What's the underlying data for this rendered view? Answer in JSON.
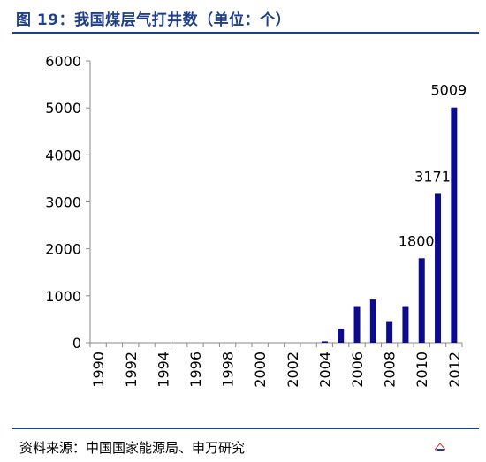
{
  "header": {
    "title": "图 19：我国煤层气打井数（单位：个）"
  },
  "footer": {
    "source": "资料来源：中国国家能源局、申万研究"
  },
  "colors": {
    "bar": "#0b0b8c",
    "title": "#1f3f8a",
    "rule": "#1f3f8a"
  },
  "chart_data": {
    "type": "bar",
    "categories": [
      "1990",
      "1991",
      "1992",
      "1993",
      "1994",
      "1995",
      "1996",
      "1997",
      "1998",
      "1999",
      "2000",
      "2001",
      "2002",
      "2003",
      "2004",
      "2005",
      "2006",
      "2007",
      "2008",
      "2009",
      "2010",
      "2011",
      "2012"
    ],
    "tick_labels": [
      "1990",
      "1992",
      "1994",
      "1996",
      "1998",
      "2000",
      "2002",
      "2004",
      "2006",
      "2008",
      "2010",
      "2012"
    ],
    "values": [
      0,
      0,
      0,
      0,
      0,
      0,
      0,
      0,
      0,
      0,
      0,
      0,
      0,
      0,
      30,
      300,
      780,
      920,
      460,
      780,
      1800,
      3171,
      5009
    ],
    "data_labels": [
      {
        "category": "2010",
        "text": "1800"
      },
      {
        "category": "2011",
        "text": "3171"
      },
      {
        "category": "2012",
        "text": "5009"
      }
    ],
    "ylim": [
      0,
      6000
    ],
    "yticks": [
      0,
      1000,
      2000,
      3000,
      4000,
      5000,
      6000
    ],
    "grid": false
  }
}
